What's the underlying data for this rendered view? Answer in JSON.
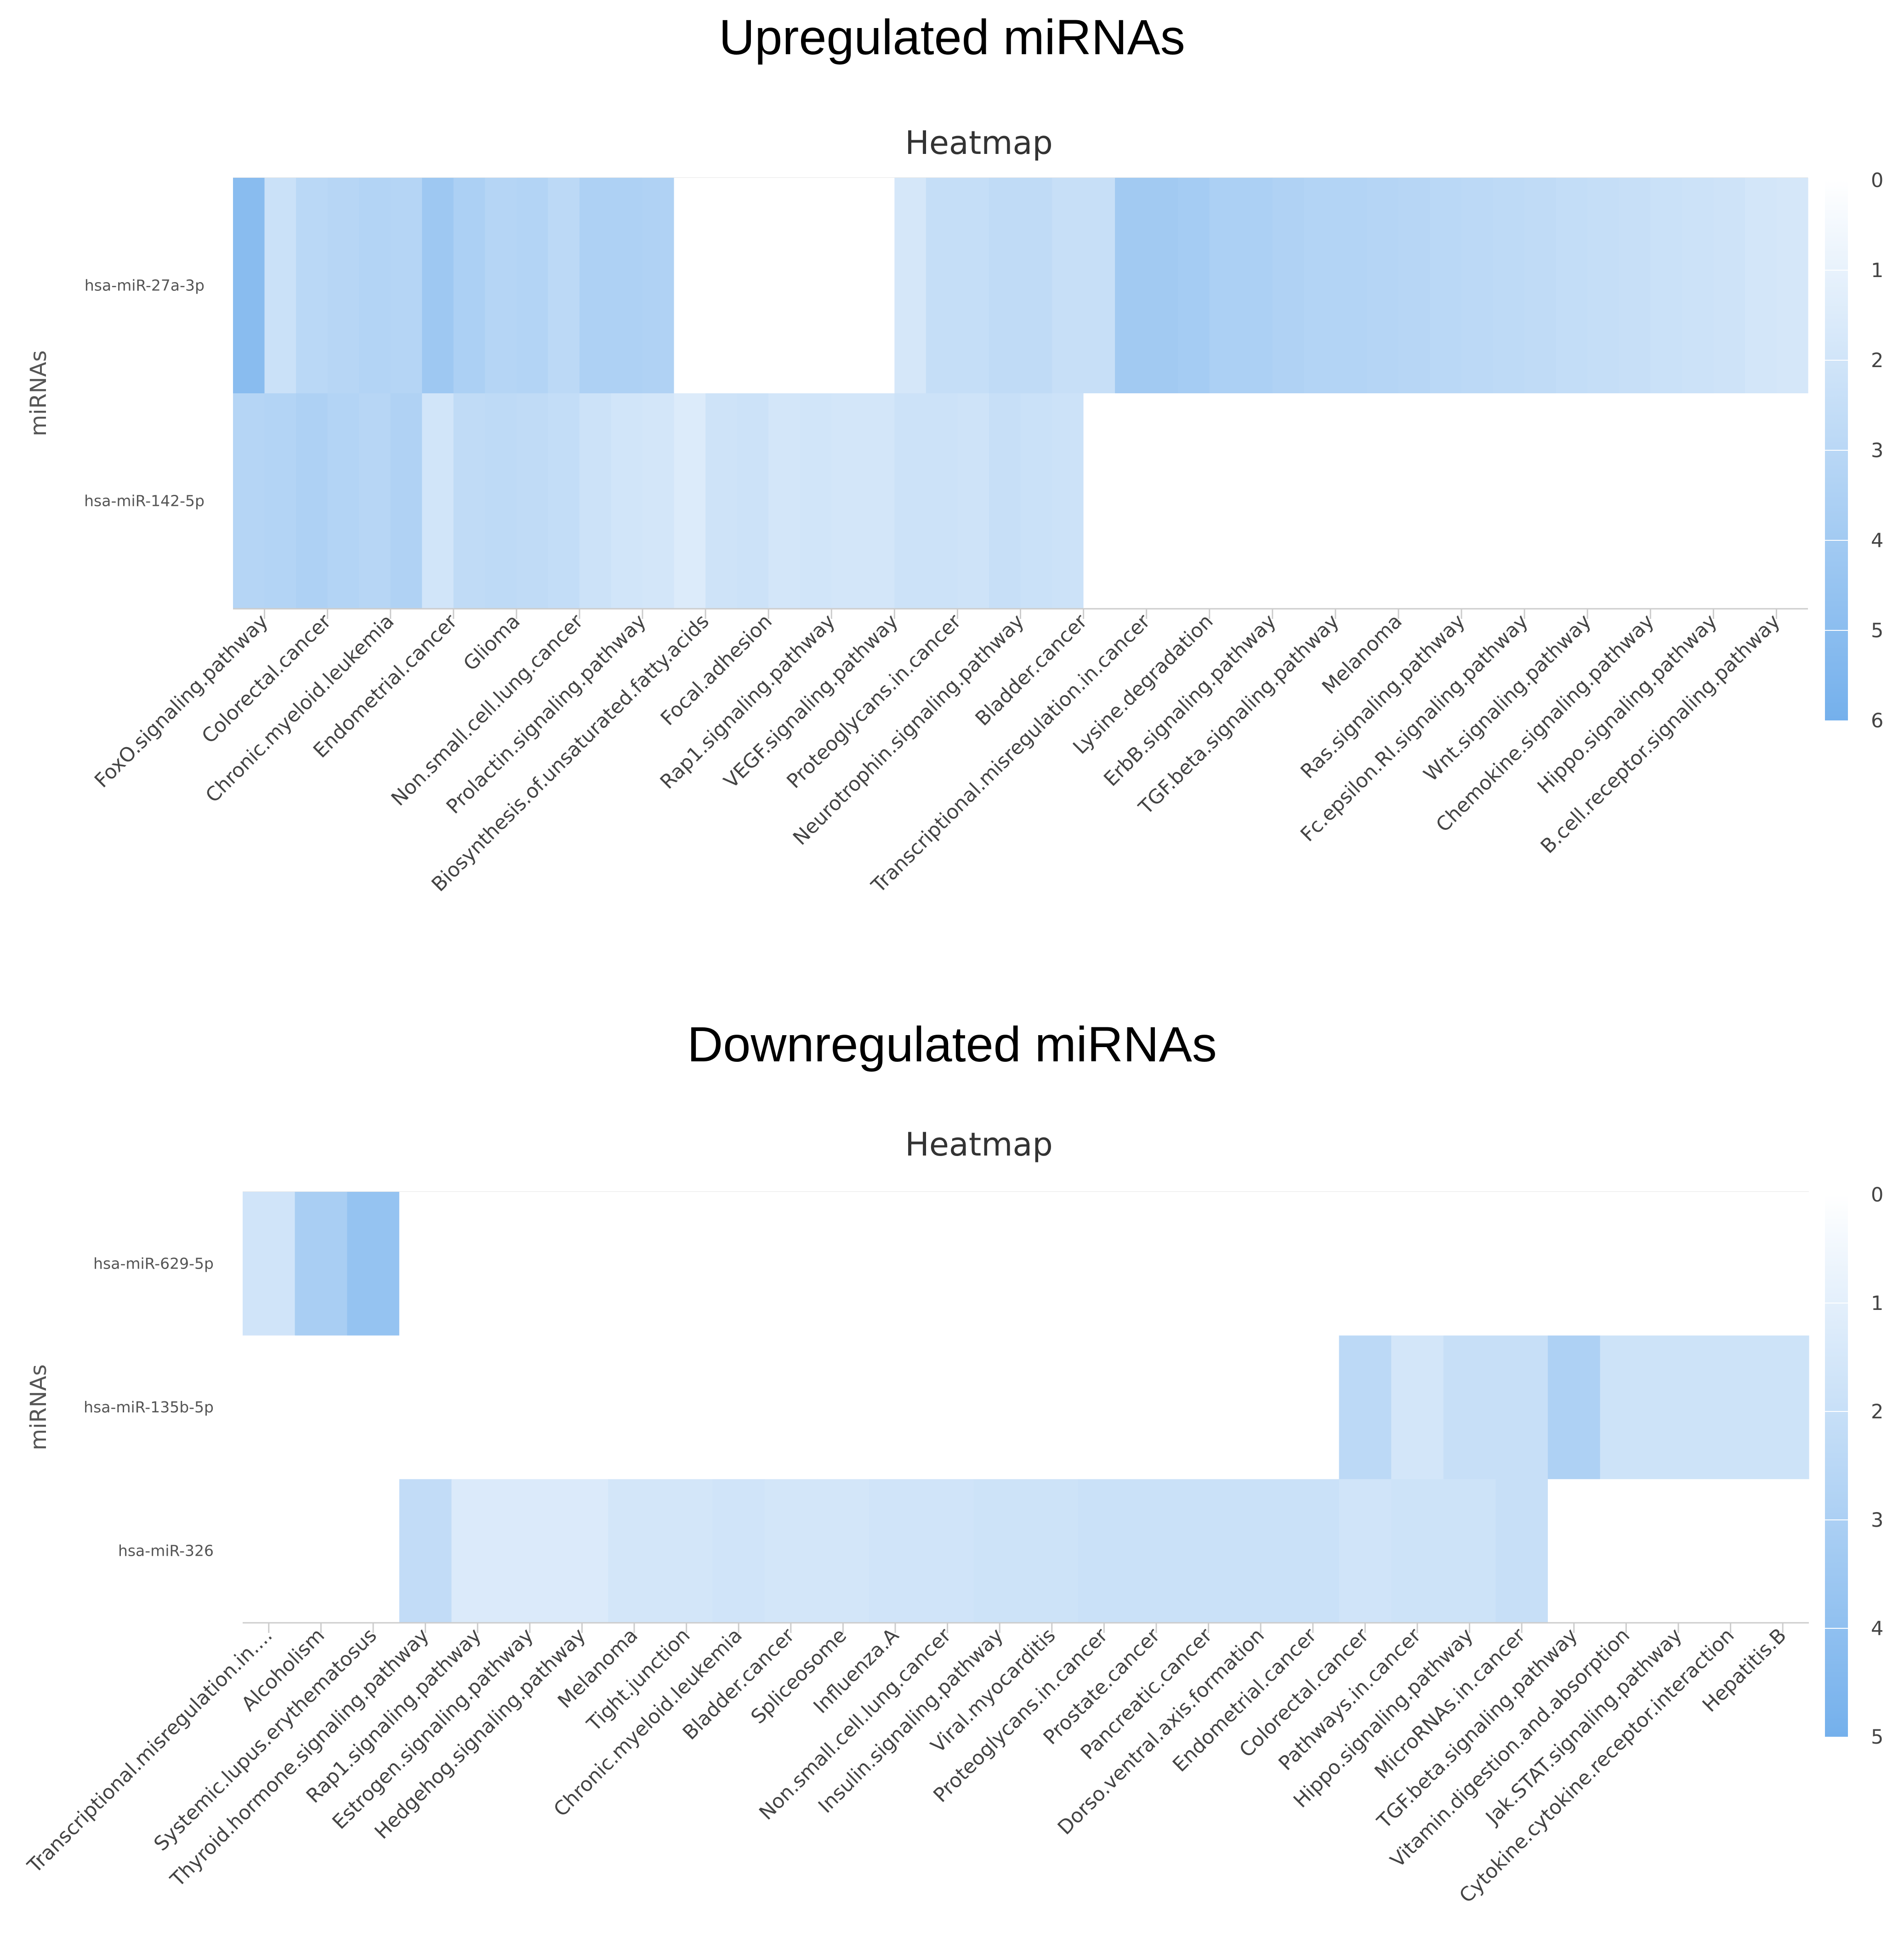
{
  "figure": {
    "title_up": "Upregulated miRNAs",
    "title_down": "Downregulated miRNAs"
  },
  "chart_data": [
    {
      "type": "heatmap",
      "title": "Heatmap",
      "ylabel": "miRNAs",
      "color_low": "#ffffff",
      "color_high": "#74b0ec",
      "color_range": [
        0,
        6
      ],
      "legend_ticks": [
        "0",
        "1",
        "2",
        "3",
        "4",
        "5",
        "6"
      ],
      "rows": [
        "hsa-miR-27a-3p",
        "hsa-miR-142-5p"
      ],
      "x_labels": [
        "FoxO.signaling.pathway",
        "Colorectal.cancer",
        "Chronic.myeloid.leukemia",
        "Endometrial.cancer",
        "Glioma",
        "Non.small.cell.lung.cancer",
        "Prolactin.signaling.pathway",
        "Biosynthesis.of.unsaturated.fatty.acids",
        "Focal.adhesion",
        "Rap1.signaling.pathway",
        "VEGF.signaling.pathway",
        "Proteoglycans.in.cancer",
        "Neurotrophin.signaling.pathway",
        "Bladder.cancer",
        "Transcriptional.misregulation.in.cancer",
        "Lysine.degradation",
        "ErbB.signaling.pathway",
        "TGF.beta.signaling.pathway",
        "Melanoma",
        "Ras.signaling.pathway",
        "Fc.epsilon.RI.signaling.pathway",
        "Wnt.signaling.pathway",
        "Chemokine.signaling.pathway",
        "Hippo.signaling.pathway",
        "B.cell.receptor.signaling.pathway"
      ],
      "columns": 50,
      "values": [
        [
          5.1,
          2.3,
          3.0,
          3.1,
          3.3,
          3.2,
          4.2,
          3.6,
          3.2,
          3.3,
          2.9,
          3.5,
          3.5,
          3.4,
          0,
          0,
          0,
          0,
          0,
          0,
          0,
          1.8,
          2.5,
          2.5,
          2.7,
          2.7,
          2.4,
          2.4,
          4.0,
          4.0,
          3.9,
          3.6,
          3.6,
          3.4,
          3.3,
          3.3,
          3.2,
          3.1,
          3.0,
          2.9,
          2.8,
          2.7,
          2.6,
          2.5,
          2.4,
          2.3,
          2.2,
          2.1,
          1.9,
          1.8
        ],
        [
          3.2,
          3.3,
          3.5,
          3.3,
          3.1,
          3.4,
          2.0,
          2.7,
          2.8,
          2.7,
          2.6,
          2.2,
          2.0,
          1.9,
          1.5,
          2.1,
          2.2,
          1.9,
          2.0,
          1.9,
          1.9,
          2.2,
          2.2,
          2.1,
          2.4,
          2.3,
          2.2,
          0,
          0,
          0,
          0,
          0,
          0,
          0,
          0,
          0,
          0,
          0,
          0,
          0,
          0,
          0,
          0,
          0,
          0,
          0,
          0,
          0,
          0,
          0
        ]
      ]
    },
    {
      "type": "heatmap",
      "title": "Heatmap",
      "ylabel": "miRNAs",
      "color_low": "#ffffff",
      "color_high": "#74b0ec",
      "color_range": [
        0,
        5
      ],
      "legend_ticks": [
        "0",
        "1",
        "2",
        "3",
        "4",
        "5"
      ],
      "rows": [
        "hsa-miR-629-5p",
        "hsa-miR-135b-5p",
        "hsa-miR-326"
      ],
      "x_labels": [
        "Transcriptional.misregulation.in....",
        "Alcoholism",
        "Systemic.lupus.erythematosus",
        "Thyroid.hormone.signaling.pathway",
        "Rap1.signaling.pathway",
        "Estrogen.signaling.pathway",
        "Hedgehog.signaling.pathway",
        "Melanoma",
        "Tight.junction",
        "Chronic.myeloid.leukemia",
        "Bladder.cancer",
        "Spliceosome",
        "Influenza.A",
        "Non.small.cell.lung.cancer",
        "Insulin.signaling.pathway",
        "Viral.myocarditis",
        "Proteoglycans.in.cancer",
        "Prostate.cancer",
        "Pancreatic.cancer",
        "Dorso.ventral.axis.formation",
        "Endometrial.cancer",
        "Colorectal.cancer",
        "Pathways.in.cancer",
        "Hippo.signaling.pathway",
        "MicroRNAs.in.cancer",
        "TGF.beta.signaling.pathway",
        "Vitamin.digestion.and.absorption",
        "Jak.STAT.signaling.pathway",
        "Cytokine.cytokine.receptor.interaction",
        "Hepatitis.B"
      ],
      "values": [
        [
          1.7,
          3.1,
          3.8,
          0,
          0,
          0,
          0,
          0,
          0,
          0,
          0,
          0,
          0,
          0,
          0,
          0,
          0,
          0,
          0,
          0,
          0,
          0,
          0,
          0,
          0,
          0,
          0,
          0,
          0,
          0
        ],
        [
          0,
          0,
          0,
          0,
          0,
          0,
          0,
          0,
          0,
          0,
          0,
          0,
          0,
          0,
          0,
          0,
          0,
          0,
          0,
          0,
          0,
          2.4,
          1.6,
          2.0,
          2.0,
          2.9,
          1.8,
          1.8,
          1.8,
          1.8
        ],
        [
          0,
          0,
          0,
          2.2,
          1.3,
          1.3,
          1.3,
          1.6,
          1.6,
          1.7,
          1.6,
          1.6,
          1.7,
          1.7,
          1.8,
          1.8,
          1.9,
          1.9,
          1.9,
          1.9,
          1.9,
          1.7,
          1.8,
          1.8,
          2.0,
          0,
          0,
          0,
          0,
          0
        ]
      ]
    }
  ]
}
